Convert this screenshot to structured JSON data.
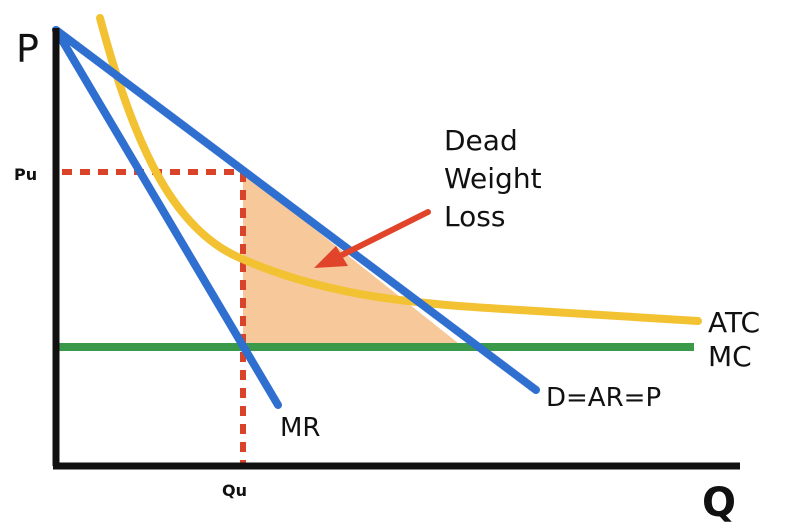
{
  "diagram": {
    "axes": {
      "y_label": "P",
      "x_label": "Q",
      "price_marker": "Pu",
      "quantity_marker": "Qu"
    },
    "curves": {
      "demand": "D=AR=P",
      "marginal_revenue": "MR",
      "average_total_cost": "ATC",
      "marginal_cost": "MC"
    },
    "annotation": {
      "lines": [
        "Dead",
        "Weight",
        "Loss"
      ]
    },
    "colors": {
      "demand": "#2f6fd0",
      "marginal_revenue": "#2f6fd0",
      "atc": "#f2c233",
      "mc": "#3a9a4a",
      "deadweight_fill": "#f6c89a",
      "guide_lines": "#d9432a",
      "arrow": "#e0442a",
      "axes": "#111111"
    }
  }
}
